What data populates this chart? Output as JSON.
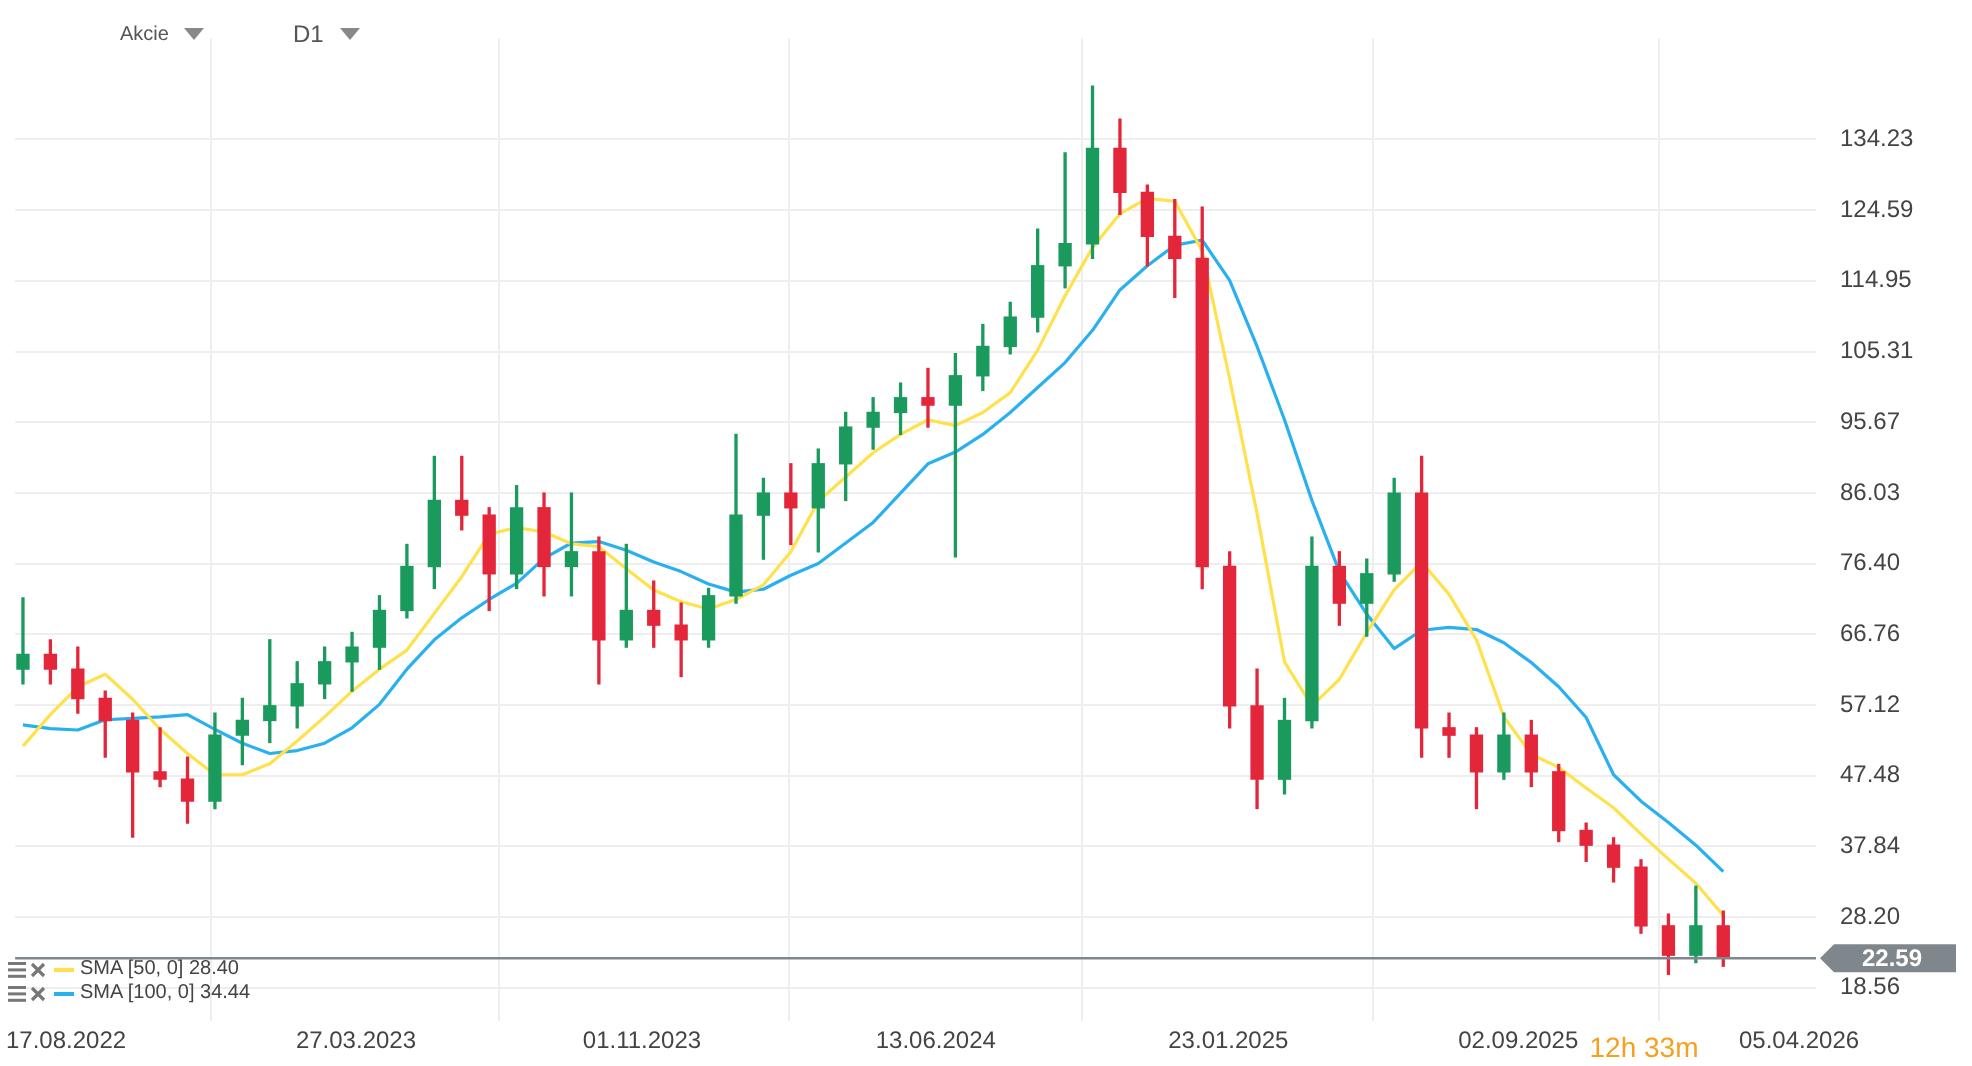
{
  "chart_data": {
    "type": "candlestick",
    "annotations": [
      "Akcie",
      "D1",
      "12h 33m"
    ],
    "x": [
      "2022-07-15",
      "2022-08-05",
      "2022-08-26",
      "2022-09-16",
      "2022-10-07",
      "2022-10-28",
      "2022-11-18",
      "2022-12-09",
      "2022-12-30",
      "2023-01-20",
      "2023-02-10",
      "2023-03-03",
      "2023-03-24",
      "2023-04-14",
      "2023-05-05",
      "2023-05-26",
      "2023-06-16",
      "2023-07-07",
      "2023-07-28",
      "2023-08-18",
      "2023-09-08",
      "2023-09-29",
      "2023-10-20",
      "2023-11-10",
      "2023-12-01",
      "2023-12-22",
      "2024-01-12",
      "2024-02-02",
      "2024-02-23",
      "2024-03-15",
      "2024-04-05",
      "2024-04-26",
      "2024-05-17",
      "2024-06-07",
      "2024-06-28",
      "2024-07-19",
      "2024-08-09",
      "2024-08-30",
      "2024-09-20",
      "2024-10-11",
      "2024-11-01",
      "2024-11-22",
      "2024-12-13",
      "2025-01-03",
      "2025-01-24",
      "2025-02-14",
      "2025-03-07",
      "2025-03-28",
      "2025-04-18",
      "2025-05-09",
      "2025-05-30",
      "2025-06-20",
      "2025-07-11",
      "2025-08-01",
      "2025-08-22",
      "2025-09-12",
      "2025-10-03",
      "2025-10-24",
      "2025-11-14",
      "2025-12-05",
      "2025-12-26",
      "2026-01-16",
      "2026-02-06"
    ],
    "ohlc": [
      [
        62,
        71.7,
        60,
        64
      ],
      [
        64,
        66,
        60,
        62
      ],
      [
        62,
        65,
        56,
        58
      ],
      [
        58,
        59,
        50,
        55
      ],
      [
        55,
        56,
        39.1,
        48
      ],
      [
        48,
        54,
        46,
        47
      ],
      [
        47,
        50,
        41,
        44
      ],
      [
        44,
        56,
        43,
        53
      ],
      [
        53,
        58,
        49,
        55
      ],
      [
        55,
        66,
        52,
        57
      ],
      [
        57,
        63,
        54,
        60
      ],
      [
        60,
        65,
        58,
        63
      ],
      [
        63,
        67,
        59,
        65
      ],
      [
        65,
        72,
        62,
        70
      ],
      [
        70,
        79,
        69,
        76
      ],
      [
        76,
        91,
        73,
        85
      ],
      [
        85,
        91,
        81,
        83
      ],
      [
        83,
        84,
        70,
        75
      ],
      [
        75,
        87,
        73,
        84
      ],
      [
        84,
        86,
        72,
        76
      ],
      [
        76,
        86,
        72,
        78
      ],
      [
        78,
        80,
        60,
        66
      ],
      [
        66,
        79,
        65,
        70
      ],
      [
        70,
        74,
        65,
        68
      ],
      [
        68,
        71,
        61,
        66
      ],
      [
        66,
        73,
        65,
        72
      ],
      [
        72,
        94,
        71,
        83
      ],
      [
        83,
        88,
        77,
        86
      ],
      [
        86,
        90,
        79,
        84
      ],
      [
        84,
        92,
        78,
        90
      ],
      [
        90,
        97,
        85,
        95
      ],
      [
        95,
        99,
        92,
        97
      ],
      [
        97,
        101,
        94,
        99
      ],
      [
        99,
        103,
        95,
        98
      ],
      [
        98,
        105,
        77.3,
        102
      ],
      [
        102,
        109,
        100,
        106
      ],
      [
        106,
        112,
        105,
        110
      ],
      [
        110,
        122,
        108,
        117
      ],
      [
        117,
        132.4,
        114,
        120
      ],
      [
        120,
        141.5,
        118,
        133
      ],
      [
        133,
        137,
        124,
        127
      ],
      [
        127,
        128,
        117,
        121
      ],
      [
        121,
        126,
        112.7,
        118
      ],
      [
        118,
        125,
        73,
        76
      ],
      [
        76,
        78,
        54,
        57
      ],
      [
        57,
        62,
        43,
        47
      ],
      [
        47,
        58,
        45,
        55
      ],
      [
        55,
        80,
        54,
        76
      ],
      [
        76,
        78,
        68,
        71
      ],
      [
        71,
        77,
        66.5,
        75
      ],
      [
        75,
        88,
        74,
        86
      ],
      [
        86,
        91,
        50,
        54
      ],
      [
        54,
        56,
        50,
        53
      ],
      [
        53,
        54,
        43,
        48
      ],
      [
        48,
        56,
        47,
        53
      ],
      [
        53,
        55,
        46,
        48
      ],
      [
        48,
        49,
        38.5,
        40
      ],
      [
        40,
        41,
        35.8,
        38
      ],
      [
        38,
        39,
        33,
        35
      ],
      [
        35,
        36,
        26,
        27
      ],
      [
        27,
        28.6,
        20.4,
        23
      ],
      [
        23,
        32.4,
        22,
        27
      ],
      [
        27,
        29,
        21.5,
        22.59
      ]
    ],
    "colors": [
      "#1a9a5c",
      "#e3263a",
      "#e3263a",
      "#e3263a",
      "#e3263a",
      "#e3263a",
      "#e3263a",
      "#1a9a5c",
      "#1a9a5c",
      "#1a9a5c",
      "#1a9a5c",
      "#1a9a5c",
      "#1a9a5c",
      "#1a9a5c",
      "#1a9a5c",
      "#1a9a5c",
      "#e3263a",
      "#e3263a",
      "#1a9a5c",
      "#e3263a",
      "#1a9a5c",
      "#e3263a",
      "#1a9a5c",
      "#e3263a",
      "#e3263a",
      "#1a9a5c",
      "#1a9a5c",
      "#1a9a5c",
      "#e3263a",
      "#1a9a5c",
      "#1a9a5c",
      "#1a9a5c",
      "#1a9a5c",
      "#e3263a",
      "#1a9a5c",
      "#1a9a5c",
      "#1a9a5c",
      "#1a9a5c",
      "#1a9a5c",
      "#1a9a5c",
      "#e3263a",
      "#e3263a",
      "#e3263a",
      "#e3263a",
      "#e3263a",
      "#e3263a",
      "#1a9a5c",
      "#1a9a5c",
      "#e3263a",
      "#1a9a5c",
      "#1a9a5c",
      "#e3263a",
      "#e3263a",
      "#e3263a",
      "#1a9a5c",
      "#e3263a",
      "#e3263a",
      "#e3263a",
      "#e3263a",
      "#e3263a",
      "#e3263a",
      "#1a9a5c",
      "#e3263a"
    ],
    "series": [
      {
        "type": "line",
        "name": "SMA [50, 0] 28.40",
        "color": "#ffe14d",
        "values": [
          51.5,
          55.8,
          59.6,
          61.3,
          57.9,
          53.8,
          50.5,
          47.6,
          47.6,
          49.1,
          52.2,
          55.5,
          59.0,
          62.0,
          64.6,
          69.6,
          74.6,
          80.4,
          81.3,
          80.7,
          79.1,
          78.7,
          75.7,
          72.8,
          71.2,
          70.2,
          71.5,
          73.5,
          78.0,
          84.9,
          88.2,
          91.5,
          94.0,
          96.0,
          95.2,
          97.0,
          99.7,
          105.5,
          112.9,
          119.5,
          124.1,
          126.2,
          125.8,
          119.0,
          101.6,
          83.2,
          63.0,
          57.0,
          60.6,
          67.0,
          72.8,
          76.6,
          72.2,
          66.0,
          55.5,
          50.4,
          48.6,
          45.8,
          43.1,
          39.5,
          36.1,
          32.8,
          28.4
        ]
      },
      {
        "type": "line",
        "name": "SMA [100, 0] 34.44",
        "color": "#2ab0ef",
        "values": [
          54.4,
          53.9,
          53.7,
          55.1,
          55.3,
          55.5,
          55.8,
          53.8,
          51.9,
          50.5,
          50.9,
          51.9,
          54.0,
          57.2,
          62.0,
          66.0,
          69.0,
          71.5,
          73.7,
          77.1,
          79.2,
          79.4,
          78.2,
          76.6,
          75.3,
          73.6,
          72.5,
          72.9,
          74.8,
          76.4,
          79.2,
          82.0,
          86.0,
          90.0,
          91.6,
          94.0,
          97.0,
          100.4,
          103.8,
          108.2,
          113.7,
          117.0,
          119.8,
          120.5,
          115.0,
          106.0,
          96.0,
          85.0,
          75.3,
          69.5,
          64.8,
          67.3,
          67.7,
          67.4,
          65.6,
          62.9,
          59.6,
          55.4,
          47.6,
          44.0,
          41.1,
          38.0,
          34.4
        ]
      }
    ],
    "xlim": [
      "2022-07-09",
      "2026-04-18"
    ],
    "xticks": [
      {
        "value": "2022-08-17",
        "label": "17.08.2022"
      },
      {
        "value": "2023-03-27",
        "label": "27.03.2023"
      },
      {
        "value": "2023-11-01",
        "label": "01.11.2023"
      },
      {
        "value": "2024-06-13",
        "label": "13.06.2024"
      },
      {
        "value": "2025-01-23",
        "label": "23.01.2025"
      },
      {
        "value": "2025-09-02",
        "label": "02.09.2025"
      },
      {
        "value": "2026-04-05",
        "label": "05.04.2026"
      }
    ],
    "ylim": [
      14,
      148
    ],
    "yticks": [
      18.56,
      {
        "value": 28.2,
        "label": "28.20"
      },
      37.84,
      47.48,
      57.12,
      66.76,
      {
        "value": 76.4,
        "label": "76.40"
      },
      86.03,
      95.67,
      105.31,
      114.95,
      124.59,
      134.23
    ],
    "ref_lines": [
      {
        "axis": "y",
        "value": 22.59,
        "label": "22.59",
        "color": "#7f878c"
      }
    ],
    "grid": true,
    "legend": "bottom left",
    "marker": "none"
  }
}
